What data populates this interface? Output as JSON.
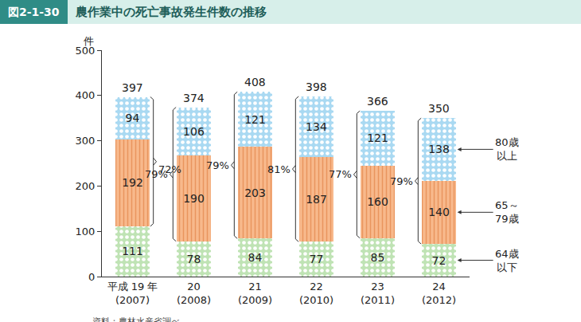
{
  "chart_data": {
    "type": "bar",
    "figure_label": "図2-1-30",
    "title": "農作業中の死亡事故発生件数の推移",
    "y_label": "件",
    "source": "資料：農林水産省調べ",
    "categories": [
      "平成 19 年\n(2007)",
      "20\n(2008)",
      "21\n(2009)",
      "22\n(2010)",
      "23\n(2011)",
      "24\n(2012)"
    ],
    "series": [
      {
        "name": "64歳\n以下",
        "color": "#bfe3b4",
        "marker": "dots",
        "values": [
          111,
          78,
          84,
          77,
          85,
          72
        ]
      },
      {
        "name": "65～\n79歳",
        "color": "#f8b98c",
        "marker": "vlines",
        "values": [
          192,
          190,
          203,
          187,
          160,
          140
        ]
      },
      {
        "name": "80歳\n以上",
        "color": "#a9d9f2",
        "marker": "dots",
        "values": [
          94,
          106,
          121,
          134,
          121,
          138
        ]
      }
    ],
    "totals": [
      397,
      374,
      408,
      398,
      366,
      350
    ],
    "shares": [
      72,
      79,
      79,
      81,
      77,
      79
    ],
    "share_labels": [
      "72%",
      "79%",
      "79%",
      "81%",
      "77%",
      "79%"
    ],
    "stacked": true,
    "data_labels": true,
    "grid": false,
    "ylim": [
      0,
      500
    ],
    "yticks": [
      0,
      100,
      200,
      300,
      400,
      500
    ]
  }
}
